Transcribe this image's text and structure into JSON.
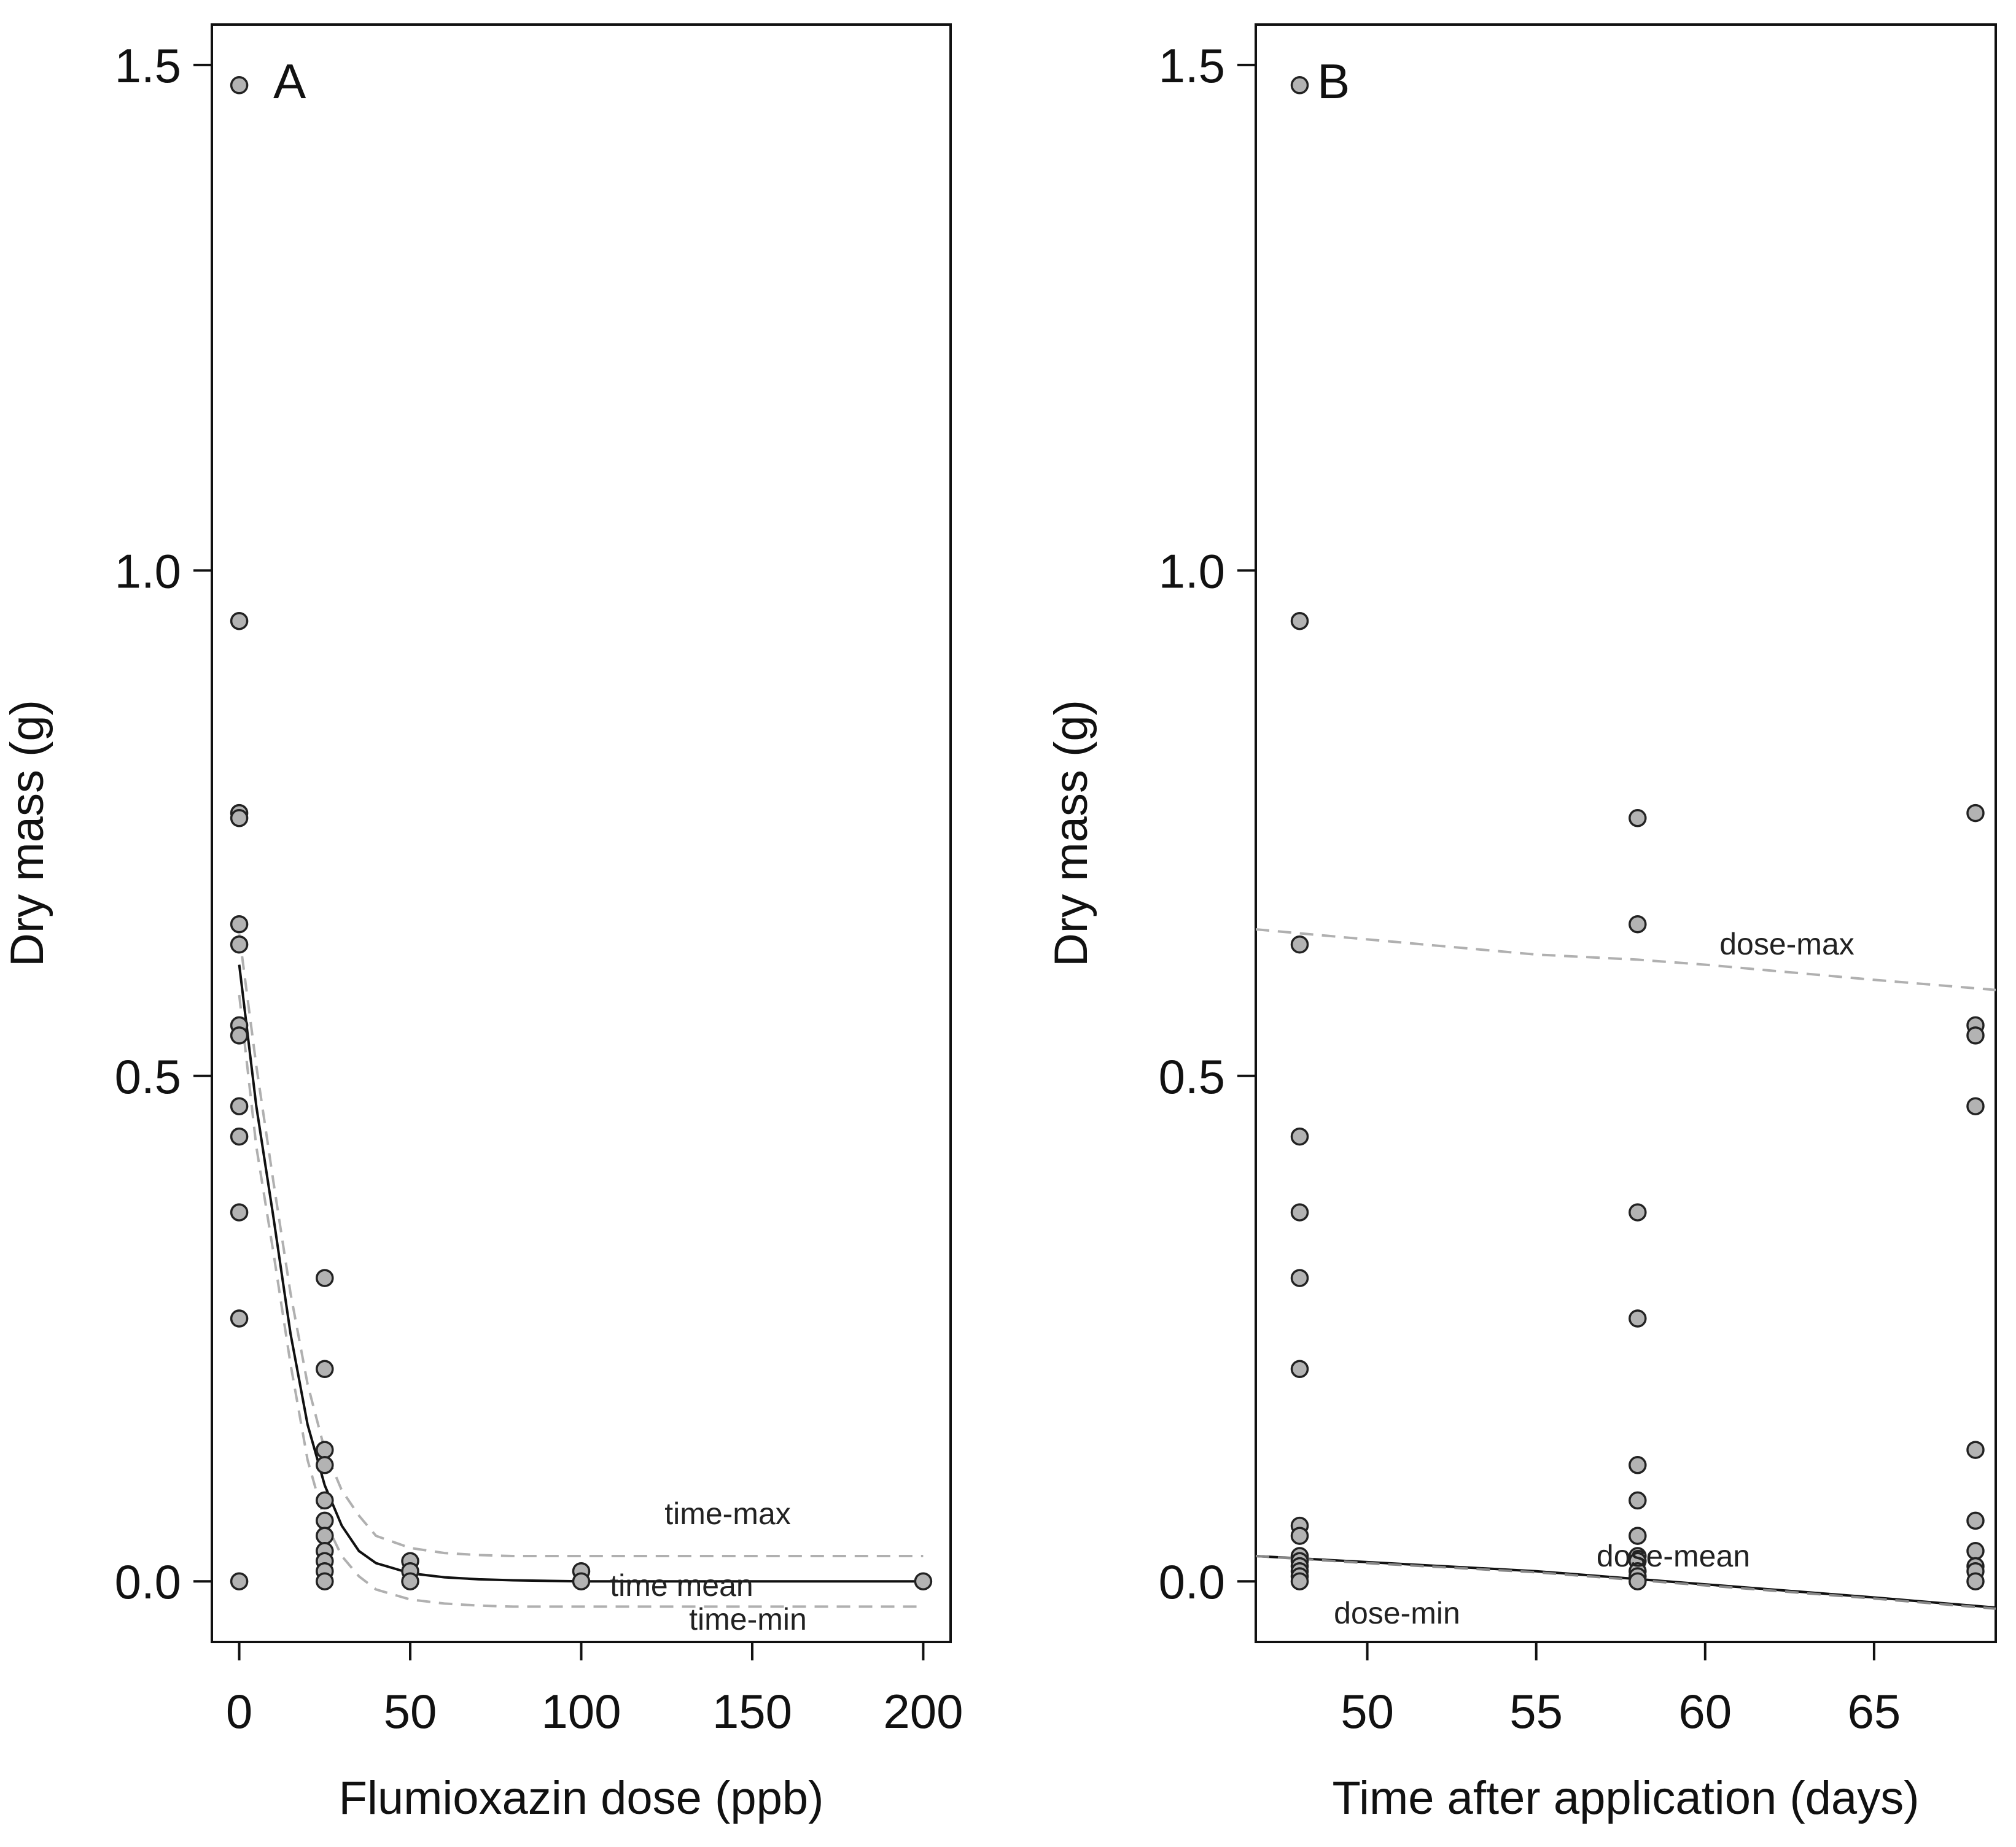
{
  "chart_data": [
    {
      "type": "scatter",
      "panel_label": "A",
      "xlabel": "Flumioxazin dose (ppb)",
      "ylabel": "Dry mass (g)",
      "xlim": [
        -8,
        208
      ],
      "ylim": [
        -0.06,
        1.54
      ],
      "xticks": [
        0,
        50,
        100,
        150,
        200
      ],
      "yticks": [
        0.0,
        0.5,
        1.0,
        1.5
      ],
      "xtick_labels": [
        "0",
        "50",
        "100",
        "150",
        "200"
      ],
      "ytick_labels": [
        "0.0",
        "0.5",
        "1.0",
        "1.5"
      ],
      "grid": false,
      "points": {
        "x": [
          0,
          0,
          0,
          0,
          0,
          0,
          0,
          0,
          0,
          0,
          0,
          0,
          0,
          25,
          25,
          25,
          25,
          25,
          25,
          25,
          25,
          25,
          25,
          25,
          50,
          50,
          50,
          100,
          100,
          200
        ],
        "y": [
          1.48,
          0.95,
          0.76,
          0.755,
          0.65,
          0.63,
          0.55,
          0.54,
          0.47,
          0.44,
          0.365,
          0.26,
          0.0,
          0.3,
          0.21,
          0.13,
          0.115,
          0.08,
          0.06,
          0.045,
          0.03,
          0.02,
          0.01,
          0.0,
          0.02,
          0.01,
          0.0,
          0.01,
          0.0,
          0.0
        ]
      },
      "series": [
        {
          "name": "time-max",
          "style": "dashed",
          "color": "#b0b0b0",
          "x": [
            0,
            5,
            10,
            15,
            20,
            25,
            30,
            35,
            40,
            50,
            60,
            70,
            80,
            100,
            150,
            200
          ],
          "y": [
            0.64,
            0.51,
            0.395,
            0.285,
            0.195,
            0.13,
            0.09,
            0.065,
            0.045,
            0.033,
            0.028,
            0.026,
            0.025,
            0.025,
            0.025,
            0.025
          ]
        },
        {
          "name": "time mean",
          "style": "solid",
          "color": "#111111",
          "x": [
            0,
            5,
            10,
            15,
            20,
            25,
            30,
            35,
            40,
            50,
            60,
            70,
            80,
            100,
            150,
            200
          ],
          "y": [
            0.61,
            0.47,
            0.36,
            0.245,
            0.155,
            0.095,
            0.055,
            0.03,
            0.018,
            0.008,
            0.004,
            0.002,
            0.001,
            0.0,
            0.0,
            0.0
          ]
        },
        {
          "name": "time-min",
          "style": "dashed",
          "color": "#b0b0b0",
          "x": [
            0,
            5,
            10,
            15,
            20,
            25,
            30,
            35,
            40,
            50,
            60,
            70,
            80,
            100,
            150,
            200
          ],
          "y": [
            0.58,
            0.43,
            0.325,
            0.215,
            0.12,
            0.06,
            0.025,
            0.005,
            -0.008,
            -0.018,
            -0.022,
            -0.024,
            -0.025,
            -0.025,
            -0.025,
            -0.025
          ]
        }
      ]
    },
    {
      "type": "scatter",
      "panel_label": "B",
      "xlabel": "Time after application (days)",
      "ylabel": "Dry mass (g)",
      "xlim": [
        46.7,
        68.6
      ],
      "ylim": [
        -0.06,
        1.54
      ],
      "xticks": [
        50,
        55,
        60,
        65
      ],
      "yticks": [
        0.0,
        0.5,
        1.0,
        1.5
      ],
      "xtick_labels": [
        "50",
        "55",
        "60",
        "65"
      ],
      "ytick_labels": [
        "0.0",
        "0.5",
        "1.0",
        "1.5"
      ],
      "grid": false,
      "points": {
        "x": [
          48,
          48,
          48,
          48,
          48,
          48,
          48,
          48,
          48,
          48,
          48,
          48,
          48,
          48,
          48,
          58,
          58,
          58,
          58,
          58,
          58,
          58,
          58,
          58,
          58,
          58,
          58,
          68,
          68,
          68,
          68,
          68,
          68,
          68,
          68,
          68,
          68
        ],
        "y": [
          1.48,
          0.95,
          0.63,
          0.44,
          0.365,
          0.3,
          0.21,
          0.055,
          0.045,
          0.025,
          0.02,
          0.015,
          0.01,
          0.005,
          0.0,
          0.755,
          0.65,
          0.365,
          0.26,
          0.115,
          0.08,
          0.045,
          0.025,
          0.02,
          0.01,
          0.005,
          0.0,
          0.76,
          0.55,
          0.54,
          0.47,
          0.13,
          0.06,
          0.03,
          0.015,
          0.01,
          0.0
        ]
      },
      "series": [
        {
          "name": "dose-max",
          "style": "dashed",
          "color": "#b0b0b0",
          "x": [
            46.7,
            50,
            55,
            58,
            60,
            65,
            68.6
          ],
          "y": [
            0.645,
            0.635,
            0.62,
            0.615,
            0.61,
            0.595,
            0.585
          ]
        },
        {
          "name": "dose-mean",
          "style": "solid",
          "color": "#111111",
          "x": [
            46.7,
            50,
            55,
            60,
            65,
            68.6
          ],
          "y": [
            0.025,
            0.019,
            0.01,
            -0.003,
            -0.016,
            -0.026
          ]
        },
        {
          "name": "dose-min",
          "style": "dashed",
          "color": "#888888",
          "x": [
            46.7,
            50,
            55,
            60,
            65,
            68.6
          ],
          "y": [
            0.025,
            0.018,
            0.009,
            -0.004,
            -0.017,
            -0.027
          ]
        }
      ]
    }
  ]
}
